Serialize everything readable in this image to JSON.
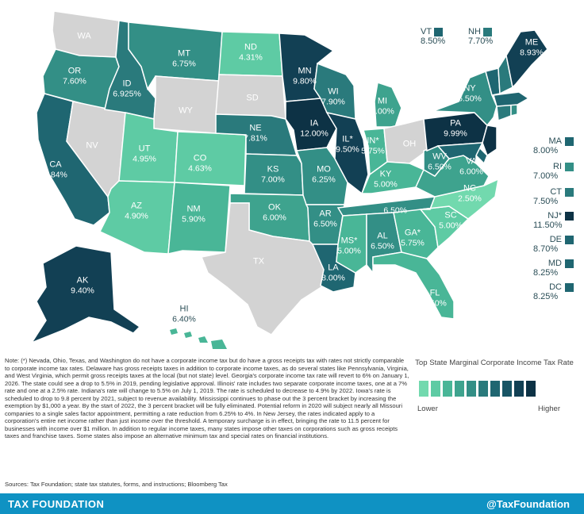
{
  "colors": {
    "c1": "#72d9ae",
    "c2": "#5ecba4",
    "c3": "#49b697",
    "c4": "#3ea38e",
    "c5": "#338f86",
    "c6": "#2a7a7c",
    "c7": "#1f6671",
    "c8": "#185565",
    "c9": "#124054",
    "c10": "#0d3245",
    "gray": "#d3d3d3"
  },
  "states": {
    "WA": {
      "abbr": "WA",
      "rate": ""
    },
    "OR": {
      "abbr": "OR",
      "rate": "7.60%"
    },
    "CA": {
      "abbr": "CA",
      "rate": "8.84%"
    },
    "NV": {
      "abbr": "NV",
      "rate": ""
    },
    "ID": {
      "abbr": "ID",
      "rate": "6.925%"
    },
    "MT": {
      "abbr": "MT",
      "rate": "6.75%"
    },
    "WY": {
      "abbr": "WY",
      "rate": ""
    },
    "UT": {
      "abbr": "UT",
      "rate": "4.95%"
    },
    "AZ": {
      "abbr": "AZ",
      "rate": "4.90%"
    },
    "CO": {
      "abbr": "CO",
      "rate": "4.63%"
    },
    "NM": {
      "abbr": "NM",
      "rate": "5.90%"
    },
    "ND": {
      "abbr": "ND",
      "rate": "4.31%"
    },
    "SD": {
      "abbr": "SD",
      "rate": ""
    },
    "NE": {
      "abbr": "NE",
      "rate": "7.81%"
    },
    "KS": {
      "abbr": "KS",
      "rate": "7.00%"
    },
    "OK": {
      "abbr": "OK",
      "rate": "6.00%"
    },
    "TX": {
      "abbr": "TX",
      "rate": ""
    },
    "MN": {
      "abbr": "MN",
      "rate": "9.80%"
    },
    "IA": {
      "abbr": "IA",
      "rate": "12.00%"
    },
    "MO": {
      "abbr": "MO",
      "rate": "6.25%"
    },
    "AR": {
      "abbr": "AR",
      "rate": "6.50%"
    },
    "LA": {
      "abbr": "LA",
      "rate": "8.00%"
    },
    "WI": {
      "abbr": "WI",
      "rate": "7.90%"
    },
    "IL": {
      "abbr": "IL*",
      "rate": "9.50%"
    },
    "MI": {
      "abbr": "MI",
      "rate": "6.00%"
    },
    "IN": {
      "abbr": "IN*",
      "rate": "5.75%"
    },
    "OH": {
      "abbr": "OH",
      "rate": ""
    },
    "KY": {
      "abbr": "KY",
      "rate": "5.00%"
    },
    "TN": {
      "abbr": "TN",
      "rate": "6.50%"
    },
    "MS": {
      "abbr": "MS*",
      "rate": "5.00%"
    },
    "AL": {
      "abbr": "AL",
      "rate": "6.50%"
    },
    "GA": {
      "abbr": "GA*",
      "rate": "5.75%"
    },
    "FL": {
      "abbr": "FL",
      "rate": "5.50%"
    },
    "SC": {
      "abbr": "SC",
      "rate": "5.00%"
    },
    "NC": {
      "abbr": "NC",
      "rate": "2.50%"
    },
    "VA": {
      "abbr": "VA",
      "rate": "6.00%"
    },
    "WV": {
      "abbr": "WV",
      "rate": "6.50%"
    },
    "PA": {
      "abbr": "PA",
      "rate": "9.99%"
    },
    "NY": {
      "abbr": "NY",
      "rate": "6.50%"
    },
    "ME": {
      "abbr": "ME",
      "rate": "8.93%"
    },
    "AK": {
      "abbr": "AK",
      "rate": "9.40%"
    },
    "HI": {
      "abbr": "HI",
      "rate": "6.40%"
    }
  },
  "top_states": {
    "VT": {
      "abbr": "VT",
      "rate": "8.50%"
    },
    "NH": {
      "abbr": "NH",
      "rate": "7.70%"
    }
  },
  "side_states": [
    {
      "abbr": "MA",
      "rate": "8.00%"
    },
    {
      "abbr": "RI",
      "rate": "7.00%"
    },
    {
      "abbr": "CT",
      "rate": "7.50%"
    },
    {
      "abbr": "NJ*",
      "rate": "11.50%"
    },
    {
      "abbr": "DE",
      "rate": "8.70%"
    },
    {
      "abbr": "MD",
      "rate": "8.25%"
    },
    {
      "abbr": "DC",
      "rate": "8.25%"
    }
  ],
  "legend": {
    "title": "Top State Marginal Corporate Income Tax Rate",
    "low": "Lower",
    "high": "Higher"
  },
  "note": "Note: (*) Nevada, Ohio, Texas, and Washington do not have a corporate income tax but do have a gross receipts tax with rates not strictly comparable to corporate income tax rates. Delaware has gross receipts taxes in addition to corporate income taxes, as do several states like Pennsylvania, Virginia, and West Virginia, which permit gross receipts taxes at the local (but not state) level. Georgia's corporate income tax rate will revert to 6% on January 1, 2026. The state could see a drop to 5.5% in 2019, pending legislative approval. Illinois' rate includes two separate corporate income taxes, one at a 7% rate and one at a 2.5% rate. Indiana's rate will change to 5.5% on July 1, 2019. The rate is scheduled to decrease to 4.9% by 2022. Iowa's rate is scheduled to drop to 9.8 percent by 2021, subject to revenue availability. Mississippi continues to phase out the 3 percent bracket by increasing the exemption by $1,000 a year. By the start of 2022, the 3 percent bracket will be fully eliminated. Potential reform in 2020 will subject nearly all Missouri companies to a single sales factor appointment, permitting a rate reduction from 6.25% to 4%. In New Jersey, the rates indicated apply to a corporation's entire net income rather than just income over the threshold. A temporary surcharge is in effect, bringing the rate to 11.5 percent for businesses with income over $1 million. In addition to regular income taxes, many states impose other taxes on corporations such as gross receipts taxes and franchise taxes. Some states also impose an alternative minimum tax and special rates on financial institutions.",
  "sources": "Sources: Tax Foundation; state tax statutes, forms, and instructions; Bloomberg Tax",
  "footer": {
    "brand": "TAX FOUNDATION",
    "handle": "@TaxFoundation"
  }
}
